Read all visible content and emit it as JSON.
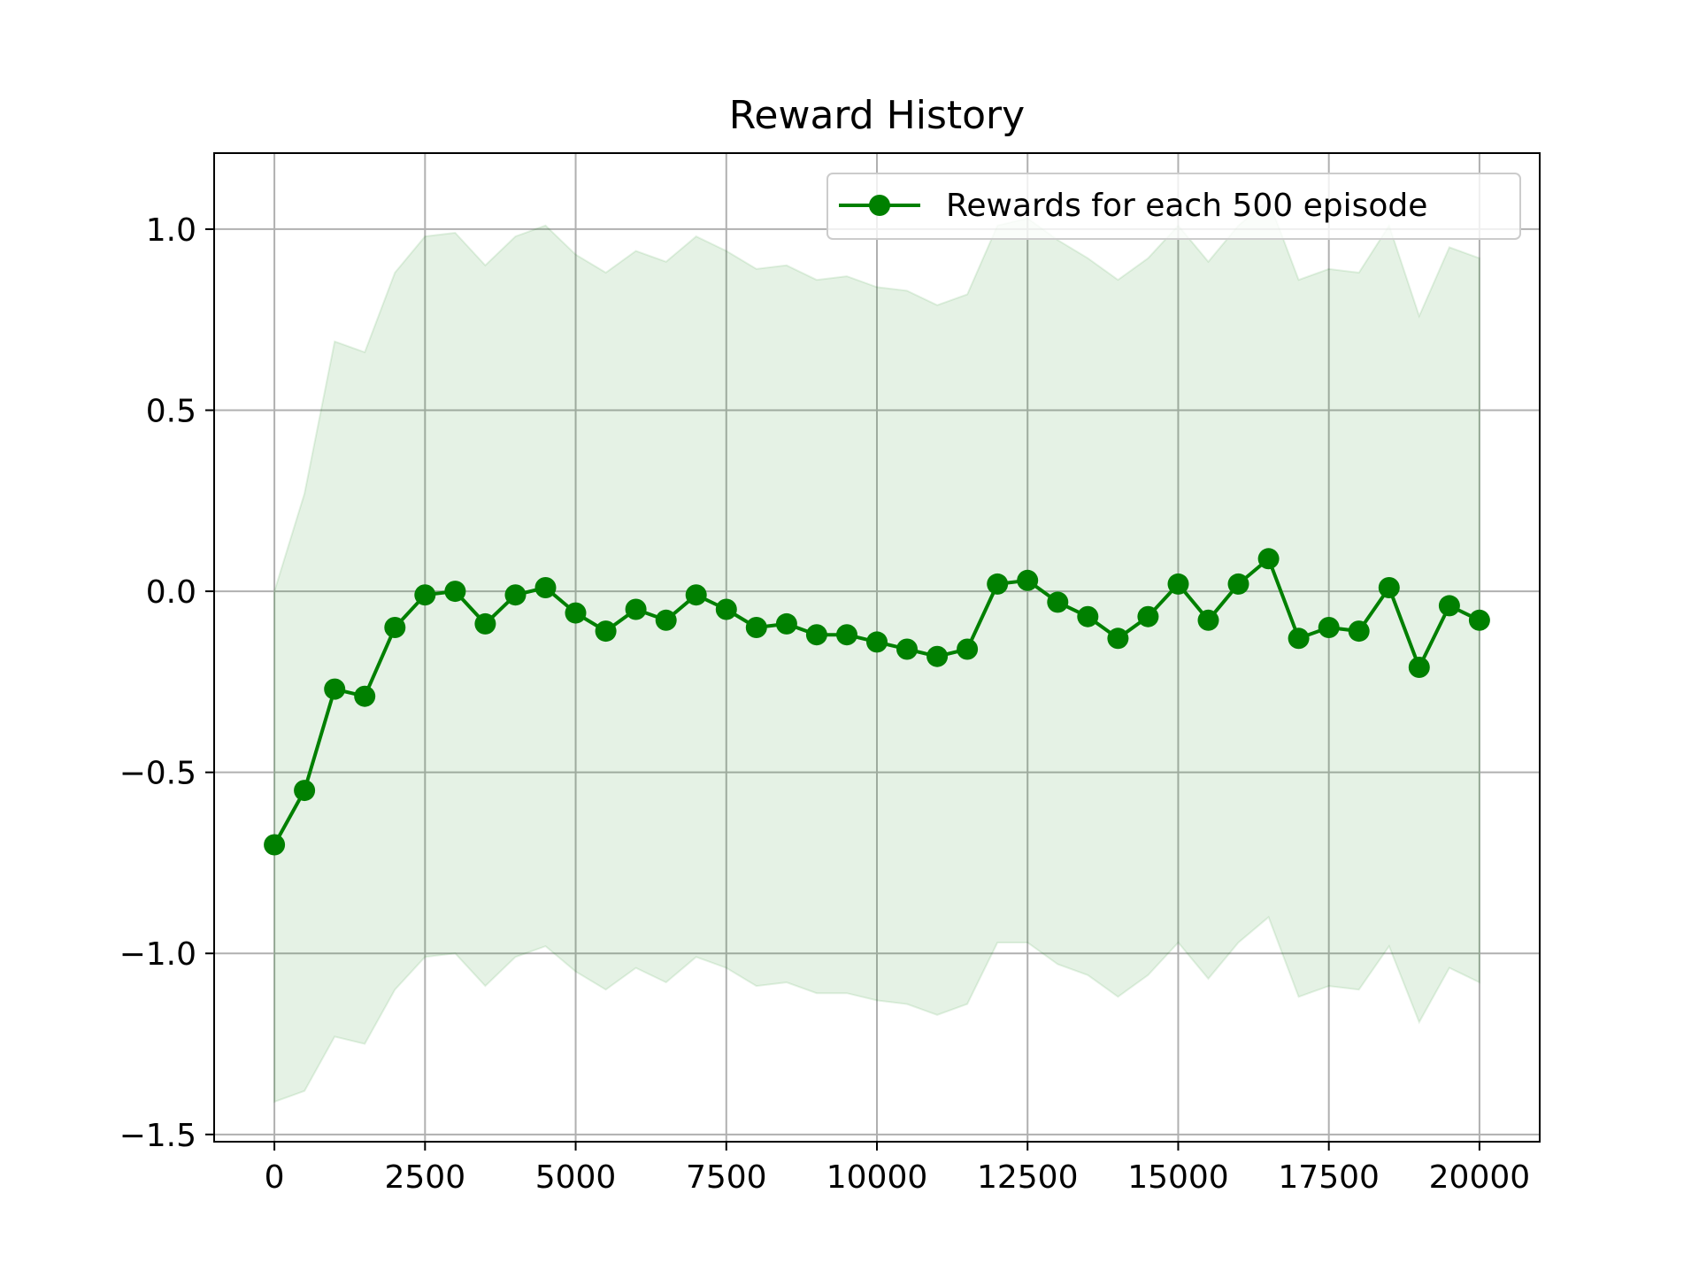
{
  "chart_data": {
    "type": "line",
    "title": "Reward History",
    "xlabel": "",
    "ylabel": "",
    "xlim": [
      -1000,
      21000
    ],
    "ylim": [
      -1.52,
      1.21
    ],
    "x_ticks": [
      0,
      2500,
      5000,
      7500,
      10000,
      12500,
      15000,
      17500,
      20000
    ],
    "x_tick_labels": [
      "0",
      "2500",
      "5000",
      "7500",
      "10000",
      "12500",
      "15000",
      "17500",
      "20000"
    ],
    "y_ticks": [
      -1.5,
      -1.0,
      -0.5,
      0.0,
      0.5,
      1.0
    ],
    "y_tick_labels": [
      "−1.5",
      "−1.0",
      "−0.5",
      "0.0",
      "0.5",
      "1.0"
    ],
    "grid": true,
    "legend_position": "top-right",
    "colors": {
      "line": "#008000",
      "band": "#008000"
    },
    "x": [
      0,
      500,
      1000,
      1500,
      2000,
      2500,
      3000,
      3500,
      4000,
      4500,
      5000,
      5500,
      6000,
      6500,
      7000,
      7500,
      8000,
      8500,
      9000,
      9500,
      10000,
      10500,
      11000,
      11500,
      12000,
      12500,
      13000,
      13500,
      14000,
      14500,
      15000,
      15500,
      16000,
      16500,
      17000,
      17500,
      18000,
      18500,
      19000,
      19500,
      20000
    ],
    "series": [
      {
        "name": "Rewards for each 500 episode",
        "values": [
          -0.7,
          -0.55,
          -0.27,
          -0.29,
          -0.1,
          -0.01,
          0.0,
          -0.09,
          -0.01,
          0.01,
          -0.06,
          -0.11,
          -0.05,
          -0.08,
          -0.01,
          -0.05,
          -0.1,
          -0.09,
          -0.12,
          -0.12,
          -0.14,
          -0.16,
          -0.18,
          -0.16,
          0.02,
          0.03,
          -0.03,
          -0.07,
          -0.13,
          -0.07,
          0.02,
          -0.08,
          0.02,
          0.09,
          -0.13,
          -0.1,
          -0.11,
          0.01,
          -0.21,
          -0.04,
          -0.08
        ]
      }
    ],
    "band": {
      "upper": [
        0.0,
        0.27,
        0.69,
        0.66,
        0.88,
        0.98,
        0.99,
        0.9,
        0.98,
        1.01,
        0.93,
        0.88,
        0.94,
        0.91,
        0.98,
        0.94,
        0.89,
        0.9,
        0.86,
        0.87,
        0.84,
        0.83,
        0.79,
        0.82,
        1.01,
        1.03,
        0.97,
        0.92,
        0.86,
        0.92,
        1.01,
        0.91,
        1.01,
        1.08,
        0.86,
        0.89,
        0.88,
        1.01,
        0.76,
        0.95,
        0.92
      ],
      "lower": [
        -1.41,
        -1.38,
        -1.23,
        -1.25,
        -1.1,
        -1.01,
        -1.0,
        -1.09,
        -1.01,
        -0.98,
        -1.05,
        -1.1,
        -1.04,
        -1.08,
        -1.01,
        -1.04,
        -1.09,
        -1.08,
        -1.11,
        -1.11,
        -1.13,
        -1.14,
        -1.17,
        -1.14,
        -0.97,
        -0.97,
        -1.03,
        -1.06,
        -1.12,
        -1.06,
        -0.97,
        -1.07,
        -0.97,
        -0.9,
        -1.12,
        -1.09,
        -1.1,
        -0.98,
        -1.19,
        -1.04,
        -1.08
      ]
    }
  }
}
